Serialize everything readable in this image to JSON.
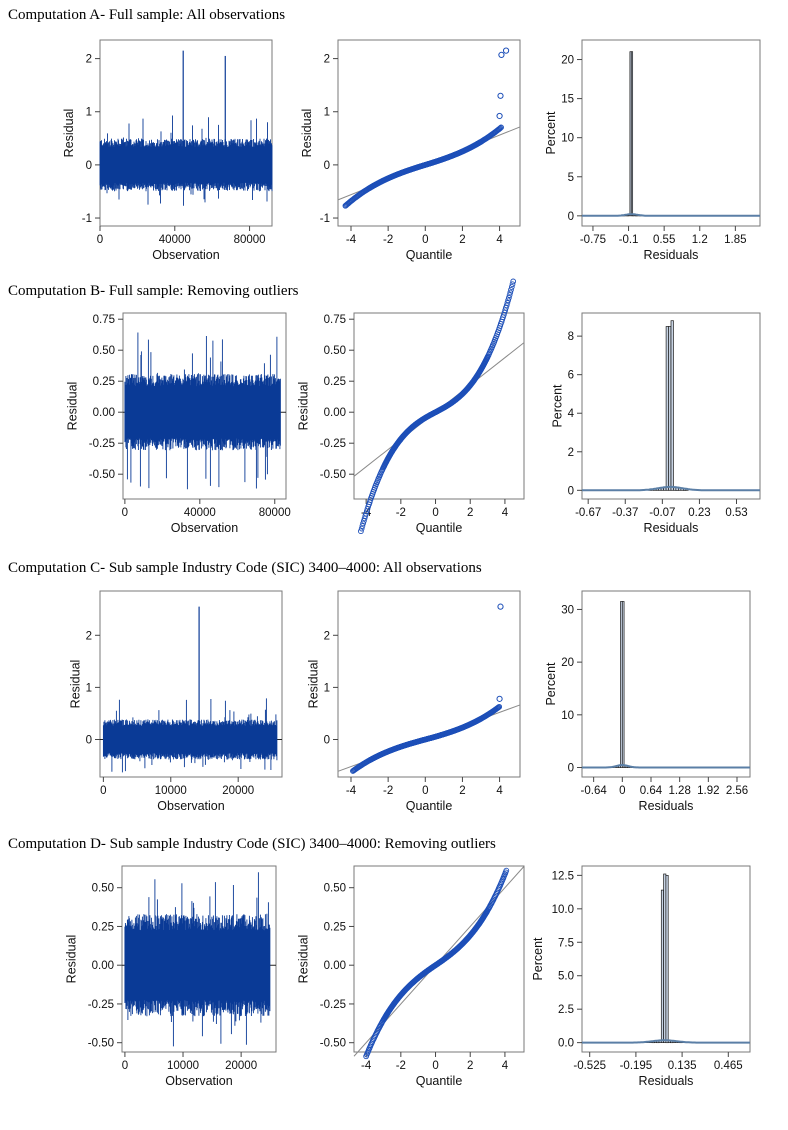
{
  "sections": [
    {
      "title": "Computation A- Full sample: All observations",
      "charts": [
        {
          "type": "line",
          "ylabel": "Residual",
          "xlabel": "Observation",
          "xlim": [
            0,
            92000
          ],
          "ylim": [
            -1.15,
            2.35
          ],
          "xticks": [
            0,
            40000,
            80000
          ],
          "xtick_labels": [
            "0",
            "40000",
            "80000"
          ],
          "yticks": [
            -1,
            0,
            1,
            2
          ],
          "ytick_labels": [
            "-1",
            "0",
            "1",
            "2"
          ],
          "band": [
            -0.45,
            0.45
          ],
          "band_x": [
            0,
            92000
          ],
          "spikes": [
            {
              "x": 44500,
              "y": 2.15
            },
            {
              "x": 67000,
              "y": 2.05
            }
          ],
          "extremes": {
            "max": 0.95,
            "min": -0.78
          }
        },
        {
          "type": "qq",
          "ylabel": "Residual",
          "xlabel": "Quantile",
          "xlim": [
            -4.7,
            5.1
          ],
          "ylim": [
            -1.15,
            2.35
          ],
          "xticks": [
            -4,
            -2,
            0,
            2,
            4
          ],
          "xtick_labels": [
            "-4",
            "-2",
            "0",
            "2",
            "4"
          ],
          "yticks": [
            -1,
            0,
            1,
            2
          ],
          "ytick_labels": [
            "-1",
            "0",
            "1",
            "2"
          ],
          "qrange": [
            -4.3,
            4.1
          ],
          "line_slope": 0.14,
          "scale": 0.19,
          "cubic": 0.0015,
          "outliers": [
            [
              4.1,
              2.07
            ],
            [
              4.35,
              2.15
            ],
            [
              4.05,
              1.3
            ],
            [
              4.0,
              0.92
            ]
          ]
        },
        {
          "type": "histogram",
          "ylabel": "Percent",
          "xlabel": "Residuals",
          "xlim": [
            -0.95,
            2.3
          ],
          "ylim": [
            -1.3,
            22.5
          ],
          "xticks": [
            -0.75,
            -0.1,
            0.55,
            1.2,
            1.85
          ],
          "xtick_labels": [
            "-0.75",
            "-0.1",
            "0.55",
            "1.2",
            "1.85"
          ],
          "yticks": [
            0,
            5,
            10,
            15,
            20
          ],
          "ytick_labels": [
            "0",
            "5",
            "10",
            "15",
            "20"
          ],
          "bin_start": -0.75,
          "bin_width": 0.025,
          "bin_end": 2.25,
          "mean": -0.045,
          "sd": 0.112,
          "scale": 0.0235,
          "spike_bins": [
            [
              -0.05,
              21
            ]
          ]
        }
      ]
    },
    {
      "title": "Computation B- Full sample: Removing outliers",
      "charts": [
        {
          "type": "line",
          "ylabel": "Residual",
          "xlabel": "Observation",
          "xlim": [
            -1000,
            86000
          ],
          "ylim": [
            -0.7,
            0.8
          ],
          "xticks": [
            0,
            40000,
            80000
          ],
          "xtick_labels": [
            "0",
            "40000",
            "80000"
          ],
          "yticks": [
            -0.5,
            -0.25,
            0,
            0.25,
            0.5,
            0.75
          ],
          "ytick_labels": [
            "-0.50",
            "-0.25",
            "0.00",
            "0.25",
            "0.50",
            "0.75"
          ],
          "band": [
            -0.28,
            0.28
          ],
          "band_x": [
            0,
            83000
          ],
          "spikes": [],
          "extremes": {
            "max": 0.7,
            "min": -0.63
          }
        },
        {
          "type": "qq",
          "ylabel": "Residual",
          "xlabel": "Quantile",
          "xlim": [
            -4.7,
            5.1
          ],
          "ylim": [
            -0.7,
            0.8
          ],
          "xticks": [
            -4,
            -2,
            0,
            2,
            4
          ],
          "xtick_labels": [
            "-4",
            "-2",
            "0",
            "2",
            "4"
          ],
          "yticks": [
            -0.5,
            -0.25,
            0,
            0.25,
            0.5,
            0.75
          ],
          "ytick_labels": [
            "-0.50",
            "-0.25",
            "0.00",
            "0.25",
            "0.50",
            "0.75"
          ],
          "qrange": [
            -4.3,
            4.5
          ],
          "line_slope": 0.11,
          "scale": 0.13,
          "cubic": 0.0035,
          "outliers": []
        },
        {
          "type": "histogram",
          "ylabel": "Percent",
          "xlabel": "Residuals",
          "xlim": [
            -0.72,
            0.72
          ],
          "ylim": [
            -0.45,
            9.2
          ],
          "xticks": [
            -0.67,
            -0.37,
            -0.07,
            0.23,
            0.53
          ],
          "xtick_labels": [
            "-0.67",
            "-0.37",
            "-0.07",
            "0.23",
            "0.53"
          ],
          "yticks": [
            0,
            2,
            4,
            6,
            8
          ],
          "ytick_labels": [
            "0",
            "2",
            "4",
            "6",
            "8"
          ],
          "bin_start": -0.7,
          "bin_width": 0.02,
          "bin_end": 0.7,
          "mean": -0.005,
          "sd": 0.1,
          "scale": 0.0218,
          "spike_bins": [
            [
              0.0,
              8.8
            ],
            [
              -0.02,
              8.5
            ]
          ]
        }
      ]
    },
    {
      "title": "Computation C- Sub sample Industry Code (SIC) 3400–4000: All observations",
      "charts": [
        {
          "type": "line",
          "ylabel": "Residual",
          "xlabel": "Observation",
          "xlim": [
            -500,
            26500
          ],
          "ylim": [
            -0.72,
            2.85
          ],
          "xticks": [
            0,
            10000,
            20000
          ],
          "xtick_labels": [
            "0",
            "10000",
            "20000"
          ],
          "yticks": [
            0,
            1,
            2
          ],
          "ytick_labels": [
            "0",
            "1",
            "2"
          ],
          "band": [
            -0.35,
            0.35
          ],
          "band_x": [
            0,
            25800
          ],
          "spikes": [
            {
              "x": 14200,
              "y": 2.55
            }
          ],
          "extremes": {
            "max": 0.8,
            "min": -0.68
          }
        },
        {
          "type": "qq",
          "ylabel": "Residual",
          "xlabel": "Quantile",
          "xlim": [
            -4.7,
            5.1
          ],
          "ylim": [
            -0.72,
            2.85
          ],
          "xticks": [
            -4,
            -2,
            0,
            2,
            4
          ],
          "xtick_labels": [
            "-4",
            "-2",
            "0",
            "2",
            "4"
          ],
          "yticks": [
            0,
            1,
            2
          ],
          "ytick_labels": [
            "0",
            "1",
            "2"
          ],
          "qrange": [
            -3.9,
            4.0
          ],
          "line_slope": 0.13,
          "scale": 0.17,
          "cubic": 0.0015,
          "outliers": [
            [
              4.05,
              2.55
            ],
            [
              4.0,
              0.78
            ]
          ]
        },
        {
          "type": "histogram",
          "ylabel": "Percent",
          "xlabel": "Residuals",
          "xlim": [
            -0.9,
            2.85
          ],
          "ylim": [
            -1.8,
            33.5
          ],
          "xticks": [
            -0.64,
            0,
            0.64,
            1.28,
            1.92,
            2.56
          ],
          "xtick_labels": [
            "-0.64",
            "0",
            "0.64",
            "1.28",
            "1.92",
            "2.56"
          ],
          "yticks": [
            0,
            10,
            20,
            30
          ],
          "ytick_labels": [
            "0",
            "10",
            "20",
            "30"
          ],
          "bin_start": -0.64,
          "bin_width": 0.04,
          "bin_end": 2.56,
          "mean": 0.0,
          "sd": 0.13,
          "scale": 0.038,
          "spike_bins": [
            [
              0.0,
              31.5
            ]
          ]
        }
      ]
    },
    {
      "title": "Computation D- Sub sample Industry Code (SIC) 3400–4000: Removing outliers",
      "charts": [
        {
          "type": "line",
          "ylabel": "Residual",
          "xlabel": "Observation",
          "xlim": [
            -500,
            26000
          ],
          "ylim": [
            -0.56,
            0.64
          ],
          "xticks": [
            0,
            10000,
            20000
          ],
          "xtick_labels": [
            "0",
            "10000",
            "20000"
          ],
          "yticks": [
            -0.5,
            -0.25,
            0,
            0.25,
            0.5
          ],
          "ytick_labels": [
            "-0.50",
            "-0.25",
            "0.00",
            "0.25",
            "0.50"
          ],
          "band": [
            -0.3,
            0.3
          ],
          "band_x": [
            0,
            25000
          ],
          "spikes": [],
          "extremes": {
            "max": 0.6,
            "min": -0.53
          }
        },
        {
          "type": "qq",
          "ylabel": "Residual",
          "xlabel": "Quantile",
          "xlim": [
            -4.7,
            5.1
          ],
          "ylim": [
            -0.56,
            0.64
          ],
          "xticks": [
            -4,
            -2,
            0,
            2,
            4
          ],
          "xtick_labels": [
            "-4",
            "-2",
            "0",
            "2",
            "4"
          ],
          "yticks": [
            -0.5,
            -0.25,
            0,
            0.25,
            0.5
          ],
          "ytick_labels": [
            "-0.50",
            "-0.25",
            "0.00",
            "0.25",
            "0.50"
          ],
          "qrange": [
            -4.0,
            4.1
          ],
          "line_slope": 0.125,
          "scale": 0.135,
          "cubic": 0.0018,
          "outliers": []
        },
        {
          "type": "histogram",
          "ylabel": "Percent",
          "xlabel": "Residuals",
          "xlim": [
            -0.58,
            0.62
          ],
          "ylim": [
            -0.7,
            13.2
          ],
          "xticks": [
            -0.525,
            -0.195,
            0.135,
            0.465
          ],
          "xtick_labels": [
            "-0.525",
            "-0.195",
            "0.135",
            "0.465"
          ],
          "yticks": [
            0,
            2.5,
            5,
            7.5,
            10,
            12.5
          ],
          "ytick_labels": [
            "0.0",
            "2.5",
            "5.0",
            "7.5",
            "10.0",
            "12.5"
          ],
          "bin_start": -0.525,
          "bin_width": 0.0165,
          "bin_end": 0.6,
          "mean": 0.01,
          "sd": 0.085,
          "scale": 0.0225,
          "spike_bins": [
            [
              0.008,
              12.6
            ],
            [
              0.024,
              12.5
            ],
            [
              -0.008,
              11.4
            ]
          ]
        }
      ]
    }
  ]
}
